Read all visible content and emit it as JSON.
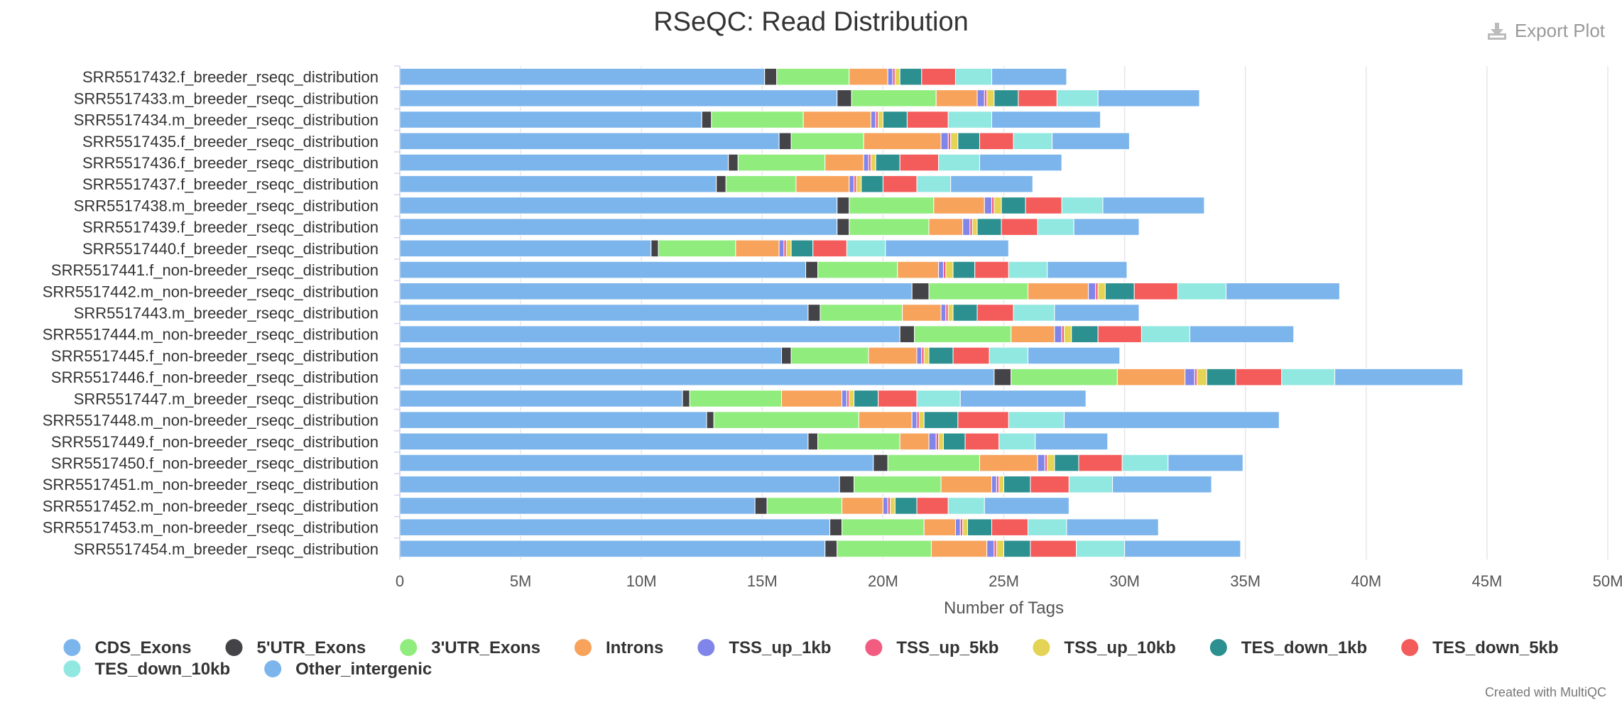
{
  "export_label": "Export Plot",
  "footer": "Created with MultiQC",
  "icons": {
    "export": "download-icon"
  },
  "chart_data": {
    "type": "bar",
    "orientation": "horizontal",
    "stacked": true,
    "title": "RSeQC: Read Distribution",
    "xlabel": "Number of Tags",
    "ylabel": "",
    "xlim": [
      0,
      50000000
    ],
    "xticks": [
      {
        "value": 0,
        "label": "0"
      },
      {
        "value": 5000000,
        "label": "5M"
      },
      {
        "value": 10000000,
        "label": "10M"
      },
      {
        "value": 15000000,
        "label": "15M"
      },
      {
        "value": 20000000,
        "label": "20M"
      },
      {
        "value": 25000000,
        "label": "25M"
      },
      {
        "value": 30000000,
        "label": "30M"
      },
      {
        "value": 35000000,
        "label": "35M"
      },
      {
        "value": 40000000,
        "label": "40M"
      },
      {
        "value": 45000000,
        "label": "45M"
      },
      {
        "value": 50000000,
        "label": "50M"
      }
    ],
    "grid": true,
    "legend_position": "bottom",
    "categories": [
      "SRR5517432.f_breeder_rseqc_distribution",
      "SRR5517433.m_breeder_rseqc_distribution",
      "SRR5517434.m_breeder_rseqc_distribution",
      "SRR5517435.f_breeder_rseqc_distribution",
      "SRR5517436.f_breeder_rseqc_distribution",
      "SRR5517437.f_breeder_rseqc_distribution",
      "SRR5517438.m_breeder_rseqc_distribution",
      "SRR5517439.f_breeder_rseqc_distribution",
      "SRR5517440.f_breeder_rseqc_distribution",
      "SRR5517441.f_non-breeder_rseqc_distribution",
      "SRR5517442.m_non-breeder_rseqc_distribution",
      "SRR5517443.m_breeder_rseqc_distribution",
      "SRR5517444.m_non-breeder_rseqc_distribution",
      "SRR5517445.f_non-breeder_rseqc_distribution",
      "SRR5517446.f_non-breeder_rseqc_distribution",
      "SRR5517447.m_breeder_rseqc_distribution",
      "SRR5517448.m_non-breeder_rseqc_distribution",
      "SRR5517449.f_non-breeder_rseqc_distribution",
      "SRR5517450.f_non-breeder_rseqc_distribution",
      "SRR5517451.m_non-breeder_rseqc_distribution",
      "SRR5517452.m_non-breeder_rseqc_distribution",
      "SRR5517453.m_non-breeder_rseqc_distribution",
      "SRR5517454.m_breeder_rseqc_distribution"
    ],
    "series": [
      {
        "name": "CDS_Exons",
        "color": "#7cb5ec",
        "values": [
          15100000,
          18100000,
          12500000,
          15700000,
          13600000,
          13100000,
          18100000,
          18100000,
          10400000,
          16800000,
          21200000,
          16900000,
          20700000,
          15800000,
          24600000,
          11700000,
          12700000,
          16900000,
          19600000,
          18200000,
          14700000,
          17800000,
          17600000
        ]
      },
      {
        "name": "5'UTR_Exons",
        "color": "#434348",
        "values": [
          500000,
          600000,
          400000,
          500000,
          400000,
          400000,
          500000,
          500000,
          300000,
          500000,
          700000,
          500000,
          600000,
          400000,
          700000,
          300000,
          300000,
          400000,
          600000,
          600000,
          500000,
          500000,
          500000
        ]
      },
      {
        "name": "3'UTR_Exons",
        "color": "#90ed7d",
        "values": [
          3000000,
          3500000,
          3800000,
          3000000,
          3600000,
          2900000,
          3500000,
          3300000,
          3200000,
          3300000,
          4100000,
          3400000,
          4000000,
          3200000,
          4400000,
          3800000,
          6000000,
          3400000,
          3800000,
          3600000,
          3100000,
          3400000,
          3900000
        ]
      },
      {
        "name": "Introns",
        "color": "#f7a35c",
        "values": [
          1600000,
          1700000,
          2800000,
          3200000,
          1600000,
          2200000,
          2100000,
          1400000,
          1800000,
          1700000,
          2500000,
          1600000,
          1800000,
          2000000,
          2800000,
          2500000,
          2200000,
          1200000,
          2400000,
          2100000,
          1700000,
          1300000,
          2300000
        ]
      },
      {
        "name": "TSS_up_1kb",
        "color": "#8085e9",
        "values": [
          200000,
          300000,
          200000,
          300000,
          200000,
          200000,
          300000,
          300000,
          200000,
          200000,
          300000,
          200000,
          300000,
          200000,
          400000,
          200000,
          200000,
          300000,
          300000,
          200000,
          200000,
          200000,
          300000
        ]
      },
      {
        "name": "TSS_up_5kb",
        "color": "#f15c80",
        "values": [
          100000,
          100000,
          100000,
          100000,
          100000,
          100000,
          100000,
          100000,
          100000,
          100000,
          100000,
          100000,
          100000,
          100000,
          100000,
          100000,
          100000,
          100000,
          100000,
          100000,
          100000,
          100000,
          100000
        ]
      },
      {
        "name": "TSS_up_10kb",
        "color": "#e4d354",
        "values": [
          200000,
          300000,
          200000,
          300000,
          200000,
          200000,
          300000,
          200000,
          200000,
          300000,
          300000,
          200000,
          300000,
          200000,
          400000,
          200000,
          200000,
          200000,
          300000,
          200000,
          200000,
          200000,
          300000
        ]
      },
      {
        "name": "TES_down_1kb",
        "color": "#2b908f",
        "values": [
          900000,
          1000000,
          1000000,
          900000,
          1000000,
          900000,
          1000000,
          1000000,
          900000,
          900000,
          1200000,
          1000000,
          1100000,
          1000000,
          1200000,
          1000000,
          1400000,
          900000,
          1000000,
          1100000,
          900000,
          1000000,
          1100000
        ]
      },
      {
        "name": "TES_down_5kb",
        "color": "#f45b5b",
        "values": [
          1400000,
          1600000,
          1700000,
          1400000,
          1600000,
          1400000,
          1500000,
          1500000,
          1400000,
          1400000,
          1800000,
          1500000,
          1800000,
          1500000,
          1900000,
          1600000,
          2100000,
          1400000,
          1800000,
          1600000,
          1300000,
          1500000,
          1900000
        ]
      },
      {
        "name": "TES_down_10kb",
        "color": "#91e8e1",
        "values": [
          1500000,
          1700000,
          1800000,
          1600000,
          1700000,
          1400000,
          1700000,
          1500000,
          1600000,
          1600000,
          2000000,
          1700000,
          2000000,
          1600000,
          2200000,
          1800000,
          2300000,
          1500000,
          1900000,
          1800000,
          1500000,
          1600000,
          2000000
        ]
      },
      {
        "name": "Other_intergenic",
        "color": "#7cb5ec",
        "values": [
          3100000,
          4200000,
          4500000,
          3200000,
          3400000,
          3400000,
          4200000,
          2700000,
          5100000,
          3300000,
          4700000,
          3500000,
          4300000,
          3800000,
          5300000,
          5200000,
          8900000,
          3000000,
          3100000,
          4100000,
          3500000,
          3800000,
          4800000
        ]
      }
    ]
  }
}
